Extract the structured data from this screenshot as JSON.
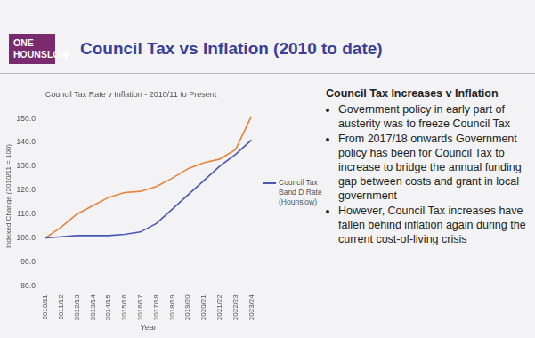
{
  "header": {
    "logo": [
      "ONE",
      "HOUNSLOW"
    ],
    "title": "Council Tax vs Inflation (2010 to date)"
  },
  "notes": {
    "heading": "Council Tax Increases v Inflation",
    "bullets": [
      "Government policy in early part of austerity was to freeze Council Tax",
      "From 2017/18 onwards Government policy has been for Council Tax to increase to bridge the annual funding gap between costs and grant in local government",
      "However, Council Tax increases have fallen behind inflation again during the current cost-of-living crisis"
    ]
  },
  "chart_data": {
    "type": "line",
    "title": "Council Tax Rate v Inflation - 2010/11 to Present",
    "x_label": "Year",
    "y_label": "Indexed Change (2010/11 = 100)",
    "categories": [
      "2010/11",
      "2011/12",
      "2012/13",
      "2013/14",
      "2014/15",
      "2015/16",
      "2016/17",
      "2017/18",
      "2018/19",
      "2019/20",
      "2020/21",
      "2021/22",
      "2022/23",
      "2023/24"
    ],
    "series": [
      {
        "name": "Council Tax Band D Rate (Hounslow)",
        "color": "#4a56b5",
        "values": [
          100,
          100.5,
          101,
          101,
          101,
          101.5,
          102.5,
          106,
          112,
          118,
          124,
          130,
          135,
          141
        ]
      },
      {
        "color": "#e8833a",
        "values": [
          100,
          104.5,
          110,
          113.5,
          117,
          119,
          119.5,
          121.5,
          125,
          129,
          131.5,
          133,
          137,
          151
        ]
      }
    ],
    "ylim": [
      80,
      155
    ],
    "yticks": [
      {
        "value": 80,
        "label": "80.0"
      },
      {
        "value": 90,
        "label": "90.0"
      },
      {
        "value": 100,
        "label": "100.0"
      },
      {
        "value": 110,
        "label": "110.0"
      },
      {
        "value": 120,
        "label": "120.0"
      },
      {
        "value": 130,
        "label": "130.0"
      },
      {
        "value": 140,
        "label": "140.0"
      },
      {
        "value": 150,
        "label": "150.0"
      }
    ],
    "grid": false,
    "legend": "right",
    "marker": "none"
  }
}
